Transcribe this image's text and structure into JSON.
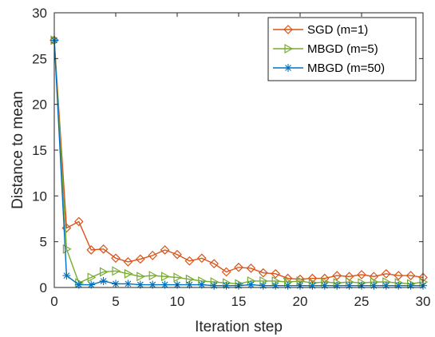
{
  "chart_data": {
    "type": "line",
    "xlabel": "Iteration step",
    "ylabel": "Distance to mean",
    "xlim": [
      0,
      30
    ],
    "ylim": [
      0,
      30
    ],
    "xticks": [
      0,
      5,
      10,
      15,
      20,
      25,
      30
    ],
    "yticks": [
      0,
      5,
      10,
      15,
      20,
      25,
      30
    ],
    "grid": false,
    "legend_position": "top-right",
    "x": [
      0,
      1,
      2,
      3,
      4,
      5,
      6,
      7,
      8,
      9,
      10,
      11,
      12,
      13,
      14,
      15,
      16,
      17,
      18,
      19,
      20,
      21,
      22,
      23,
      24,
      25,
      26,
      27,
      28,
      29,
      30
    ],
    "series": [
      {
        "name": "SGD (m=1)",
        "color": "#D95319",
        "marker": "diamond",
        "values": [
          27,
          6.5,
          7.2,
          4.1,
          4.2,
          3.2,
          2.8,
          3.1,
          3.5,
          4.1,
          3.6,
          2.9,
          3.2,
          2.6,
          1.7,
          2.2,
          2.1,
          1.6,
          1.5,
          1.0,
          0.9,
          1.0,
          1.0,
          1.3,
          1.2,
          1.4,
          1.2,
          1.5,
          1.3,
          1.3,
          1.1
        ]
      },
      {
        "name": "MBGD (m=5)",
        "color": "#77AC30",
        "marker": "triangle-right",
        "values": [
          27,
          4.2,
          0.5,
          1.1,
          1.7,
          1.8,
          1.5,
          1.2,
          1.3,
          1.2,
          1.1,
          0.9,
          0.7,
          0.6,
          0.5,
          0.4,
          0.7,
          0.7,
          0.7,
          0.6,
          0.7,
          0.5,
          0.6,
          0.5,
          0.6,
          0.5,
          0.6,
          0.6,
          0.5,
          0.4,
          0.6
        ]
      },
      {
        "name": "MBGD (m=50)",
        "color": "#0072BD",
        "marker": "asterisk",
        "values": [
          27,
          1.3,
          0.3,
          0.3,
          0.7,
          0.4,
          0.4,
          0.3,
          0.3,
          0.3,
          0.3,
          0.3,
          0.3,
          0.2,
          0.2,
          0.2,
          0.3,
          0.2,
          0.2,
          0.2,
          0.2,
          0.2,
          0.2,
          0.2,
          0.2,
          0.2,
          0.2,
          0.2,
          0.2,
          0.2,
          0.2
        ]
      }
    ]
  }
}
